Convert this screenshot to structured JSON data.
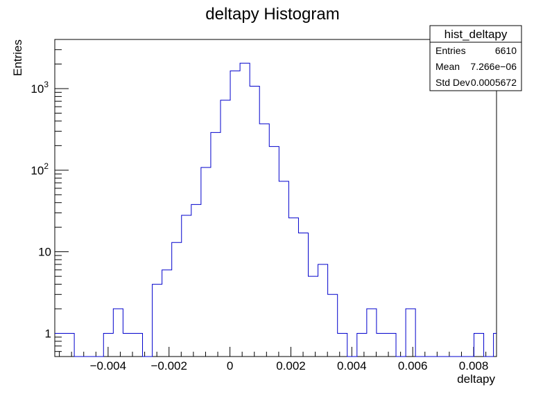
{
  "chart_data": {
    "type": "histogram",
    "title": "deltapy Histogram",
    "xlabel": "deltapy",
    "ylabel": "Entries",
    "xlim": [
      -0.00575,
      0.00875
    ],
    "ylim": [
      0.52,
      4000
    ],
    "yscale": "log",
    "grid": false,
    "line_color": "#0000cc",
    "bin_width": 0.00032,
    "bins": [
      {
        "x": -0.00575,
        "y": 1
      },
      {
        "x": -0.00543,
        "y": 1
      },
      {
        "x": -0.00511,
        "y": 0
      },
      {
        "x": -0.00479,
        "y": 0
      },
      {
        "x": -0.00447,
        "y": 0
      },
      {
        "x": -0.00415,
        "y": 1
      },
      {
        "x": -0.00383,
        "y": 2
      },
      {
        "x": -0.00351,
        "y": 1
      },
      {
        "x": -0.00319,
        "y": 1
      },
      {
        "x": -0.00287,
        "y": 0
      },
      {
        "x": -0.00255,
        "y": 4
      },
      {
        "x": -0.00223,
        "y": 6
      },
      {
        "x": -0.00191,
        "y": 13
      },
      {
        "x": -0.00159,
        "y": 28
      },
      {
        "x": -0.00127,
        "y": 38
      },
      {
        "x": -0.00095,
        "y": 108
      },
      {
        "x": -0.00063,
        "y": 290
      },
      {
        "x": -0.00031,
        "y": 720
      },
      {
        "x": 1e-05,
        "y": 1650
      },
      {
        "x": 0.00033,
        "y": 2050
      },
      {
        "x": 0.00065,
        "y": 1070
      },
      {
        "x": 0.00097,
        "y": 370
      },
      {
        "x": 0.00129,
        "y": 195
      },
      {
        "x": 0.00161,
        "y": 73
      },
      {
        "x": 0.00193,
        "y": 26
      },
      {
        "x": 0.00225,
        "y": 17
      },
      {
        "x": 0.00257,
        "y": 5
      },
      {
        "x": 0.00289,
        "y": 7
      },
      {
        "x": 0.00321,
        "y": 3
      },
      {
        "x": 0.00353,
        "y": 1
      },
      {
        "x": 0.00385,
        "y": 0
      },
      {
        "x": 0.00417,
        "y": 1
      },
      {
        "x": 0.00449,
        "y": 2
      },
      {
        "x": 0.00481,
        "y": 1
      },
      {
        "x": 0.00513,
        "y": 1
      },
      {
        "x": 0.00545,
        "y": 0
      },
      {
        "x": 0.00577,
        "y": 2
      },
      {
        "x": 0.00609,
        "y": 0
      },
      {
        "x": 0.00641,
        "y": 0
      },
      {
        "x": 0.00673,
        "y": 0
      },
      {
        "x": 0.00705,
        "y": 0
      },
      {
        "x": 0.00737,
        "y": 0
      },
      {
        "x": 0.00769,
        "y": 0
      },
      {
        "x": 0.00801,
        "y": 1
      },
      {
        "x": 0.00833,
        "y": 0
      },
      {
        "x": 0.00865,
        "y": 1
      }
    ],
    "x_ticks": [
      {
        "value": -0.004,
        "label": "−0.004"
      },
      {
        "value": -0.002,
        "label": "−0.002"
      },
      {
        "value": 0,
        "label": "0"
      },
      {
        "value": 0.002,
        "label": "0.002"
      },
      {
        "value": 0.004,
        "label": "0.004"
      },
      {
        "value": 0.006,
        "label": "0.006"
      },
      {
        "value": 0.008,
        "label": "0.008"
      }
    ],
    "y_ticks": [
      {
        "value": 1,
        "label": "1"
      },
      {
        "value": 10,
        "label": "10"
      },
      {
        "value": 100,
        "label": "10",
        "exp": "2"
      },
      {
        "value": 1000,
        "label": "10",
        "exp": "3"
      }
    ],
    "stats_box": {
      "name": "hist_deltapy",
      "rows": [
        {
          "label": "Entries",
          "value": "6610"
        },
        {
          "label": "Mean",
          "value": "7.266e−06"
        },
        {
          "label": "Std Dev",
          "value": "0.0005672"
        }
      ]
    }
  }
}
